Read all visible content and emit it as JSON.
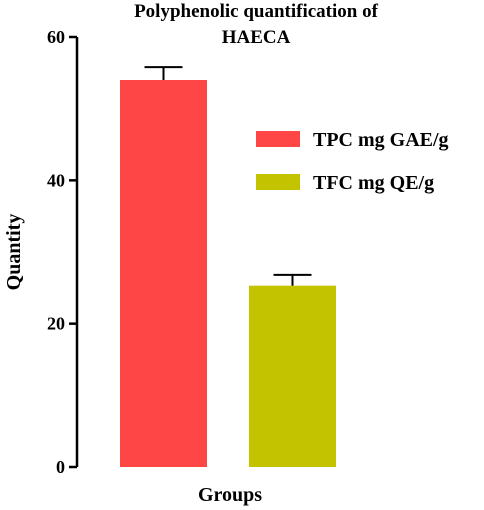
{
  "chart_data": {
    "type": "bar",
    "title_lines": [
      "Polyphenolic quantification of",
      "HAECA"
    ],
    "xlabel": "Groups",
    "ylabel": "Quantity",
    "ylim": [
      0,
      60
    ],
    "yticks": [
      0,
      20,
      40,
      60
    ],
    "grid": false,
    "legend_position": "right",
    "series": [
      {
        "name": "TPC mg GAE/g",
        "value": 54,
        "error": 1.8,
        "color": "#ff4646"
      },
      {
        "name": "TFC mg QE/g",
        "value": 25.3,
        "error": 1.5,
        "color": "#c3c300"
      }
    ]
  }
}
